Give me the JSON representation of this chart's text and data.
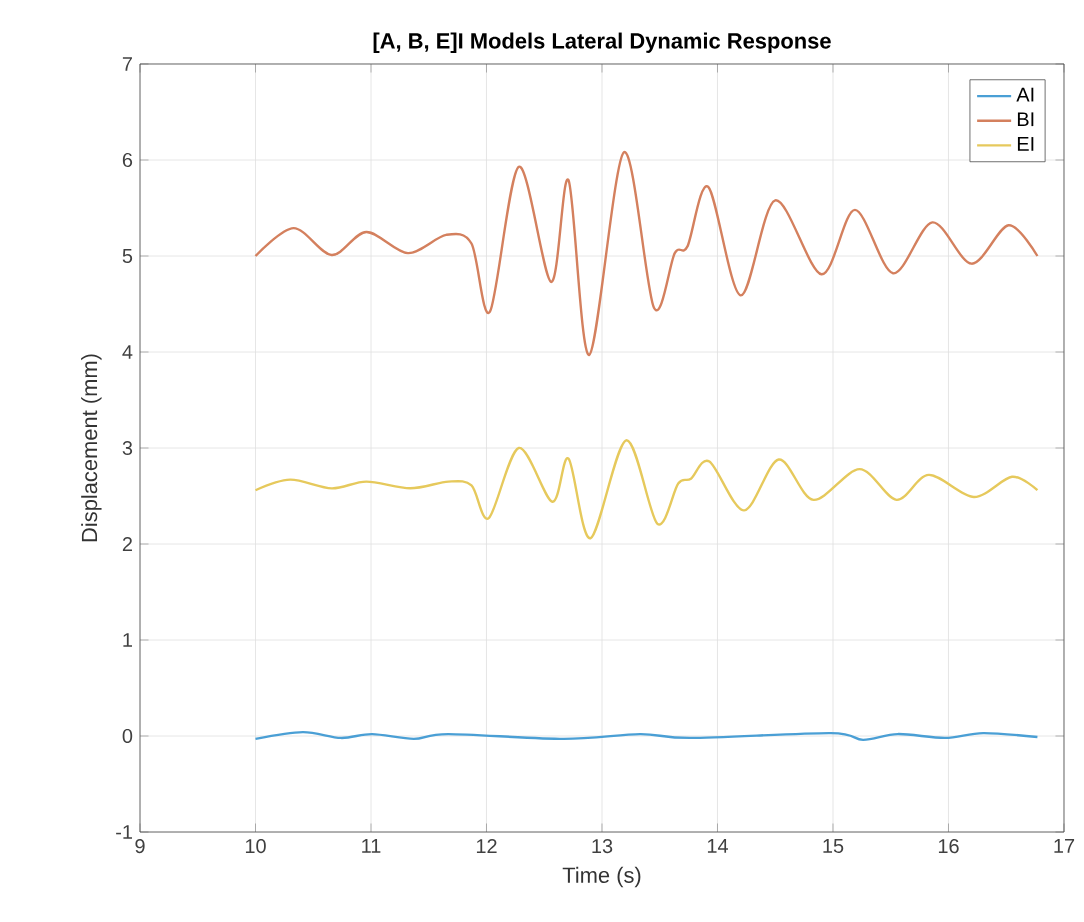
{
  "chart_data": {
    "type": "line",
    "title": "[A, B, E]I Models Lateral Dynamic Response",
    "xlabel": "Time (s)",
    "ylabel": "Displacement (mm)",
    "xlim": [
      9,
      17
    ],
    "ylim": [
      -1,
      7
    ],
    "xticks": [
      9,
      10,
      11,
      12,
      13,
      14,
      15,
      16,
      17
    ],
    "yticks": [
      -1,
      0,
      1,
      2,
      3,
      4,
      5,
      6,
      7
    ],
    "grid": true,
    "legend": "top right",
    "series": [
      {
        "name": "AI",
        "color": "#4a9fd5",
        "x": [
          10.0,
          10.41,
          10.74,
          11.01,
          11.37,
          11.67,
          12.67,
          13.33,
          13.77,
          14.98,
          15.26,
          15.56,
          15.97,
          16.3,
          16.77
        ],
        "values": [
          -0.03,
          0.04,
          -0.02,
          0.02,
          -0.03,
          0.02,
          -0.03,
          0.02,
          -0.02,
          0.03,
          -0.04,
          0.02,
          -0.02,
          0.03,
          -0.01
        ]
      },
      {
        "name": "BI",
        "color": "#d4805e",
        "x": [
          10.0,
          10.33,
          10.66,
          10.96,
          11.32,
          11.65,
          11.87,
          12.03,
          12.28,
          12.56,
          12.71,
          12.89,
          13.19,
          13.45,
          13.63,
          13.74,
          13.92,
          14.2,
          14.5,
          14.9,
          15.19,
          15.52,
          15.86,
          16.2,
          16.52,
          16.77
        ],
        "values": [
          5.0,
          5.29,
          5.01,
          5.25,
          5.03,
          5.22,
          5.13,
          4.42,
          5.93,
          4.73,
          5.79,
          3.97,
          6.08,
          4.46,
          5.03,
          5.1,
          5.72,
          4.59,
          5.58,
          4.81,
          5.48,
          4.82,
          5.35,
          4.92,
          5.32,
          5.0
        ]
      },
      {
        "name": "EI",
        "color": "#e6c95c",
        "x": [
          10.0,
          10.3,
          10.66,
          10.96,
          11.34,
          11.67,
          11.87,
          12.02,
          12.28,
          12.57,
          12.71,
          12.9,
          13.21,
          13.48,
          13.66,
          13.77,
          13.93,
          14.23,
          14.53,
          14.83,
          15.23,
          15.55,
          15.83,
          16.22,
          16.55,
          16.77
        ],
        "values": [
          2.56,
          2.67,
          2.58,
          2.65,
          2.58,
          2.65,
          2.61,
          2.27,
          3.0,
          2.44,
          2.89,
          2.06,
          3.08,
          2.21,
          2.63,
          2.68,
          2.86,
          2.35,
          2.88,
          2.46,
          2.78,
          2.46,
          2.72,
          2.49,
          2.7,
          2.56
        ]
      }
    ]
  }
}
